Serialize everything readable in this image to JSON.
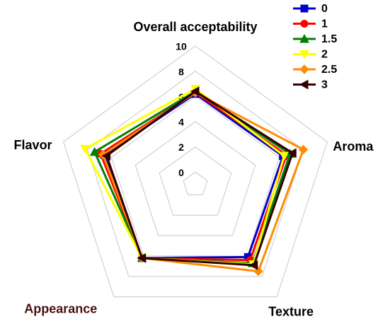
{
  "chart_data": {
    "type": "radar",
    "categories": [
      "Overall acceptability",
      "Aroma",
      "Texture",
      "Appearance",
      "Flavor"
    ],
    "category_colors": [
      "#000000",
      "#000000",
      "#000000",
      "#4a1010",
      "#000000"
    ],
    "ylim": [
      -1,
      10
    ],
    "yticks": [
      0,
      2,
      4,
      6,
      8,
      10
    ],
    "grid": true,
    "legend": "top-right",
    "series": [
      {
        "name": "0",
        "color": "#0000cc",
        "marker": "square",
        "values": [
          6.2,
          6.3,
          6.1,
          6.2,
          6.6
        ]
      },
      {
        "name": "1",
        "color": "#ff0000",
        "marker": "circle",
        "values": [
          6.3,
          6.6,
          6.4,
          6.2,
          6.9
        ]
      },
      {
        "name": "1.5",
        "color": "#008000",
        "marker": "triangle-up",
        "values": [
          6.4,
          6.9,
          6.7,
          6.2,
          7.4
        ]
      },
      {
        "name": "2",
        "color": "#ffff00",
        "marker": "triangle-down",
        "values": [
          6.6,
          6.4,
          6.8,
          6.2,
          8.2
        ]
      },
      {
        "name": "2.5",
        "color": "#ff8c00",
        "marker": "diamond",
        "values": [
          6.3,
          8.0,
          7.5,
          6.2,
          6.7
        ]
      },
      {
        "name": "3",
        "color": "#330000",
        "marker": "triangle-left",
        "values": [
          6.4,
          7.1,
          6.9,
          6.2,
          6.4
        ]
      }
    ]
  }
}
